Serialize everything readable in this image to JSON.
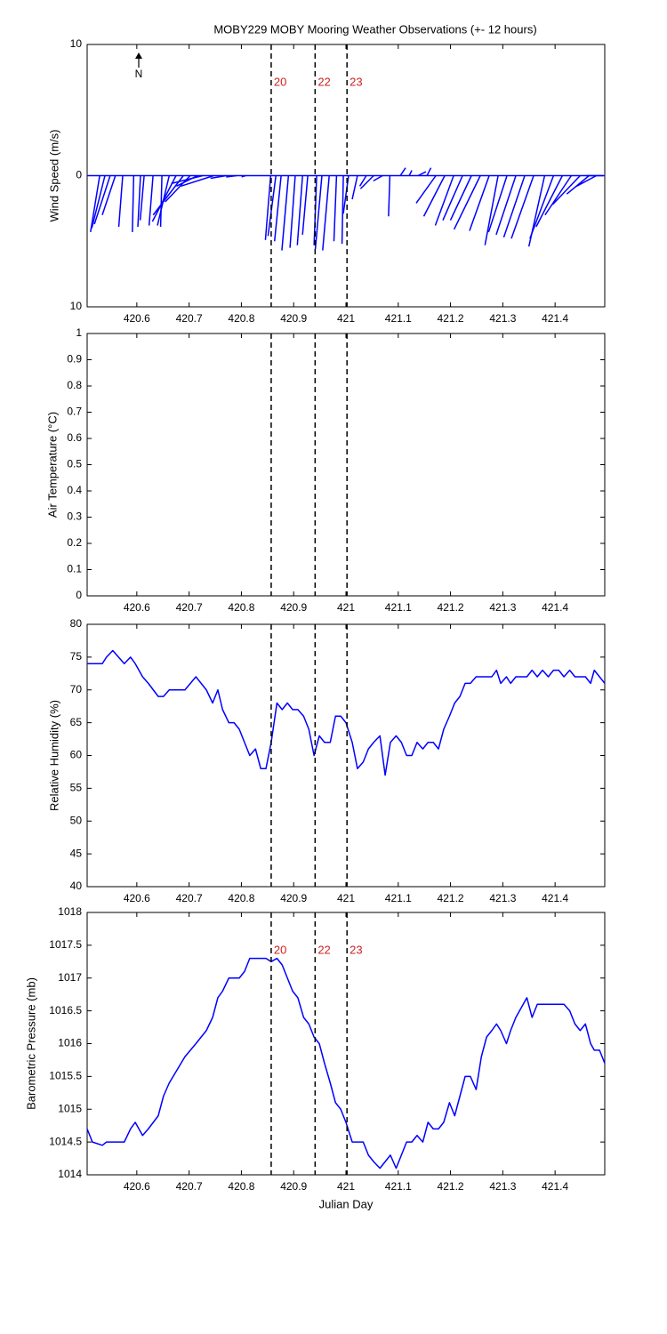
{
  "chart_data": [
    {
      "type": "stick",
      "title": "MOBY229 MOBY Mooring Weather Observations (+- 12 hours)",
      "ylabel": "Wind Speed (m/s)",
      "annotation": "N",
      "xlim": [
        420.505,
        421.495
      ],
      "xticks": [
        420.6,
        420.7,
        420.8,
        420.9,
        421,
        421.1,
        421.2,
        421.3,
        421.4
      ],
      "ylim": [
        -10,
        10
      ],
      "yticks": [
        {
          "value": -10,
          "label": "10"
        },
        0,
        10
      ],
      "vlines": [
        420.857,
        420.941,
        421.002
      ],
      "vline_labels": [
        "20",
        "22",
        "23"
      ],
      "vline_color": "#cc2222",
      "series": [
        {
          "color": "#0000ff",
          "x": [
            420.529,
            420.539,
            420.549,
            420.559,
            420.573,
            420.594,
            420.607,
            420.614,
            420.631,
            420.648,
            420.662,
            420.675,
            420.689,
            420.702,
            420.716,
            420.726,
            420.747,
            420.771,
            420.791,
            420.808,
            420.856,
            420.866,
            420.876,
            420.89,
            420.903,
            420.917,
            420.927,
            420.944,
            420.954,
            420.968,
            420.982,
            420.995,
            421.005,
            421.022,
            421.039,
            421.053,
            421.07,
            421.084,
            421.104,
            421.121,
            421.138,
            421.155,
            421.172,
            421.189,
            421.206,
            421.223,
            421.24,
            421.257,
            421.274,
            421.291,
            421.308,
            421.325,
            421.342,
            421.359,
            421.38,
            421.397,
            421.414,
            421.431,
            421.448,
            421.465,
            421.479,
            421.492
          ],
          "u": [
            -0.7,
            -1.0,
            -1.2,
            -1.0,
            -0.3,
            -0.1,
            -0.2,
            -0.3,
            -0.3,
            -0.1,
            -0.9,
            -1.8,
            -2.3,
            -1.9,
            -1.6,
            -2.4,
            -2.5,
            -1.2,
            -0.8,
            -0.3,
            -0.4,
            -0.6,
            -0.5,
            -0.5,
            -0.4,
            -0.4,
            -0.4,
            -0.2,
            -0.5,
            -0.5,
            -0.2,
            -0.1,
            -0.4,
            -0.4,
            -0.5,
            -1.0,
            -0.7,
            -0.1,
            0.4,
            0.2,
            0.6,
            0.3,
            -1.5,
            -1.6,
            -1.4,
            -1.5,
            -1.6,
            -2.0,
            -1.5,
            -1.0,
            -1.4,
            -1.5,
            -1.6,
            -1.7,
            -1.2,
            -1.8,
            -2.0,
            -2.0,
            -2.1,
            -1.7,
            -1.5,
            -1.3
          ],
          "v": [
            -4.3,
            -4.0,
            -3.7,
            -3.0,
            -3.9,
            -4.3,
            -3.9,
            -3.4,
            -3.8,
            -3.9,
            -3.8,
            -3.5,
            -3.0,
            -2.0,
            -0.8,
            -0.6,
            -0.8,
            -0.2,
            -0.1,
            -0.1,
            -4.9,
            -4.6,
            -5.0,
            -5.7,
            -5.5,
            -5.3,
            -4.5,
            -5.3,
            -5.6,
            -5.7,
            -5.0,
            -5.2,
            -2.9,
            -1.8,
            -0.8,
            -1.0,
            -0.4,
            -3.1,
            0.6,
            0.4,
            0.3,
            0.6,
            -2.1,
            -3.1,
            -3.8,
            -3.4,
            -3.4,
            -4.1,
            -4.2,
            -5.3,
            -4.3,
            -4.5,
            -4.7,
            -4.8,
            -5.4,
            -4.8,
            -3.9,
            -3.0,
            -2.2,
            -1.4,
            -0.8,
            0
          ]
        }
      ]
    },
    {
      "type": "line",
      "ylabel": "Air Temperature (°C)",
      "xlim": [
        420.505,
        421.495
      ],
      "xticks": [
        420.6,
        420.7,
        420.8,
        420.9,
        421,
        421.1,
        421.2,
        421.3,
        421.4
      ],
      "ylim": [
        0,
        1
      ],
      "yticks": [
        0,
        0.1,
        0.2,
        0.3,
        0.4,
        0.5,
        0.6,
        0.7,
        0.8,
        0.9,
        1
      ],
      "vlines": [
        420.857,
        420.941,
        421.002
      ],
      "series": []
    },
    {
      "type": "line",
      "ylabel": "Relative Humidity (%)",
      "xlim": [
        420.505,
        421.495
      ],
      "xticks": [
        420.6,
        420.7,
        420.8,
        420.9,
        421,
        421.1,
        421.2,
        421.3,
        421.4
      ],
      "ylim": [
        40,
        80
      ],
      "yticks": [
        40,
        45,
        50,
        55,
        60,
        65,
        70,
        75,
        80
      ],
      "vlines": [
        420.857,
        420.941,
        421.002
      ],
      "series": [
        {
          "color": "#0000ff",
          "x": [
            420.505,
            420.515,
            420.534,
            420.542,
            420.554,
            420.565,
            420.576,
            420.588,
            420.597,
            420.611,
            420.622,
            420.641,
            420.651,
            420.662,
            420.692,
            420.713,
            420.733,
            420.745,
            420.755,
            420.764,
            420.776,
            420.786,
            420.796,
            420.806,
            420.816,
            420.827,
            420.837,
            420.847,
            420.857,
            420.868,
            420.878,
            420.888,
            420.898,
            420.908,
            420.919,
            420.929,
            420.939,
            420.949,
            420.959,
            420.97,
            420.98,
            420.99,
            421.0,
            421.012,
            421.022,
            421.033,
            421.043,
            421.053,
            421.065,
            421.075,
            421.085,
            421.096,
            421.106,
            421.116,
            421.126,
            421.136,
            421.147,
            421.157,
            421.167,
            421.177,
            421.187,
            421.198,
            421.208,
            421.218,
            421.228,
            421.238,
            421.249,
            421.259,
            421.269,
            421.279,
            421.288,
            421.296,
            421.307,
            421.315,
            421.325,
            421.346,
            421.356,
            421.366,
            421.376,
            421.387,
            421.397,
            421.407,
            421.417,
            421.428,
            421.438,
            421.448,
            421.458,
            421.468,
            421.475,
            421.485,
            421.495
          ],
          "values": [
            74,
            74,
            74,
            75,
            76,
            75,
            74,
            75,
            74,
            72,
            71,
            69,
            69,
            70,
            70,
            72,
            70,
            68,
            70,
            67,
            65,
            65,
            64,
            62,
            60,
            61,
            58,
            58,
            62,
            68,
            67,
            68,
            67,
            67,
            66,
            64,
            60,
            63,
            62,
            62,
            66,
            66,
            65,
            62,
            58,
            59,
            61,
            62,
            63,
            57,
            62,
            63,
            62,
            60,
            60,
            62,
            61,
            62,
            62,
            61,
            64,
            66,
            68,
            69,
            71,
            71,
            72,
            72,
            72,
            72,
            73,
            71,
            72,
            71,
            72,
            72,
            73,
            72,
            73,
            72,
            73,
            73,
            72,
            73,
            72,
            72,
            72,
            71,
            73,
            72,
            71
          ]
        }
      ]
    },
    {
      "type": "line",
      "ylabel": "Barometric Pressure (mb)",
      "xlabel": "Julian Day",
      "xlim": [
        420.505,
        421.495
      ],
      "xticks": [
        420.6,
        420.7,
        420.8,
        420.9,
        421,
        421.1,
        421.2,
        421.3,
        421.4
      ],
      "ylim": [
        1014,
        1018
      ],
      "yticks": [
        1014,
        1014.5,
        1015,
        1015.5,
        1016,
        1016.5,
        1017,
        1017.5,
        1018
      ],
      "vlines": [
        420.857,
        420.941,
        421.002
      ],
      "vline_labels": [
        "20",
        "22",
        "23"
      ],
      "vline_color": "#cc2222",
      "series": [
        {
          "color": "#0000ff",
          "x": [
            420.505,
            420.515,
            420.534,
            420.542,
            420.554,
            420.565,
            420.576,
            420.588,
            420.597,
            420.611,
            420.622,
            420.641,
            420.651,
            420.662,
            420.692,
            420.713,
            420.733,
            420.745,
            420.755,
            420.764,
            420.776,
            420.786,
            420.796,
            420.806,
            420.816,
            420.827,
            420.837,
            420.847,
            420.857,
            420.868,
            420.878,
            420.888,
            420.898,
            420.908,
            420.919,
            420.929,
            420.939,
            420.949,
            420.959,
            420.97,
            420.98,
            420.99,
            421.0,
            421.012,
            421.022,
            421.033,
            421.043,
            421.053,
            421.065,
            421.075,
            421.085,
            421.096,
            421.106,
            421.116,
            421.126,
            421.136,
            421.147,
            421.157,
            421.167,
            421.177,
            421.187,
            421.198,
            421.208,
            421.218,
            421.228,
            421.238,
            421.249,
            421.259,
            421.269,
            421.279,
            421.288,
            421.296,
            421.307,
            421.315,
            421.325,
            421.346,
            421.356,
            421.366,
            421.376,
            421.387,
            421.397,
            421.407,
            421.417,
            421.428,
            421.438,
            421.448,
            421.458,
            421.468,
            421.475,
            421.485,
            421.495
          ],
          "values": [
            1014.7,
            1014.5,
            1014.45,
            1014.5,
            1014.5,
            1014.5,
            1014.5,
            1014.7,
            1014.8,
            1014.6,
            1014.7,
            1014.9,
            1015.2,
            1015.4,
            1015.8,
            1016.0,
            1016.2,
            1016.4,
            1016.7,
            1016.8,
            1017.0,
            1017.0,
            1017.0,
            1017.1,
            1017.3,
            1017.3,
            1017.3,
            1017.3,
            1017.25,
            1017.3,
            1017.2,
            1017.0,
            1016.8,
            1016.7,
            1016.4,
            1016.3,
            1016.1,
            1016.0,
            1015.7,
            1015.4,
            1015.1,
            1015.0,
            1014.8,
            1014.5,
            1014.5,
            1014.5,
            1014.3,
            1014.2,
            1014.1,
            1014.2,
            1014.3,
            1014.1,
            1014.3,
            1014.5,
            1014.5,
            1014.6,
            1014.5,
            1014.8,
            1014.7,
            1014.7,
            1014.8,
            1015.1,
            1014.9,
            1015.2,
            1015.5,
            1015.5,
            1015.3,
            1015.8,
            1016.1,
            1016.2,
            1016.3,
            1016.2,
            1016.0,
            1016.2,
            1016.4,
            1016.7,
            1016.4,
            1016.6,
            1016.6,
            1016.6,
            1016.6,
            1016.6,
            1016.6,
            1016.5,
            1016.3,
            1016.2,
            1016.3,
            1016.0,
            1015.9,
            1015.9,
            1015.7
          ]
        }
      ]
    }
  ]
}
